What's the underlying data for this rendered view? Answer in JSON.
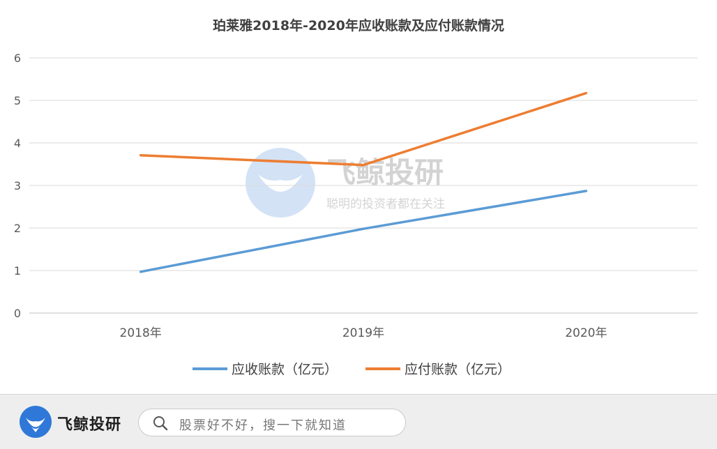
{
  "chart_data": {
    "type": "line",
    "title": "珀莱雅2018年-2020年应收账款及应付账款情况",
    "categories": [
      "2018年",
      "2019年",
      "2020年"
    ],
    "series": [
      {
        "name": "应收账款（亿元）",
        "color": "#5b9bd5",
        "values": [
          0.97,
          1.98,
          2.87
        ]
      },
      {
        "name": "应付账款（亿元）",
        "color": "#ed7d31",
        "values": [
          3.71,
          3.48,
          5.17
        ]
      }
    ],
    "ylim": [
      0,
      6
    ],
    "yticks": [
      "0",
      "1",
      "2",
      "3",
      "4",
      "5",
      "6"
    ],
    "grid": true,
    "legend": "bottom"
  },
  "watermark": {
    "name": "飞鲸投研",
    "slogan": "聪明的投资者都在关注"
  },
  "footer": {
    "brand": "飞鲸投研",
    "search_placeholder": "股票好不好，搜一下就知道"
  }
}
